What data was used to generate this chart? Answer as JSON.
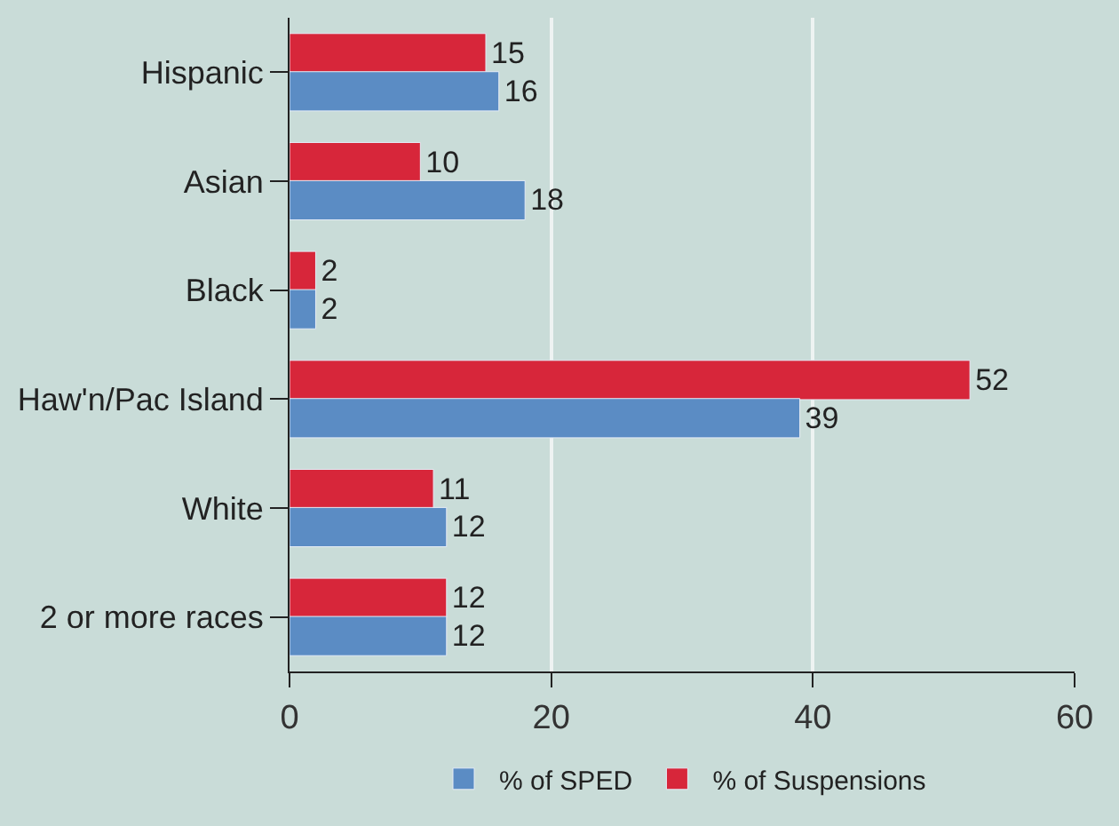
{
  "chart_data": {
    "type": "bar",
    "orientation": "horizontal",
    "categories": [
      "Hispanic",
      "Asian",
      "Black",
      "Haw'n/Pac Island",
      "White",
      "2 or more races"
    ],
    "series": [
      {
        "name": "% of SPED",
        "color": "#5b8cc4",
        "values": [
          16,
          18,
          2,
          39,
          12,
          12
        ]
      },
      {
        "name": "% of Suspensions",
        "color": "#d7263a",
        "values": [
          15,
          10,
          2,
          52,
          11,
          12
        ]
      }
    ],
    "xlim": [
      0,
      60
    ],
    "xticks": [
      0,
      20,
      40,
      60
    ],
    "grid": "x",
    "legend": "bottom",
    "data_labels": true
  }
}
